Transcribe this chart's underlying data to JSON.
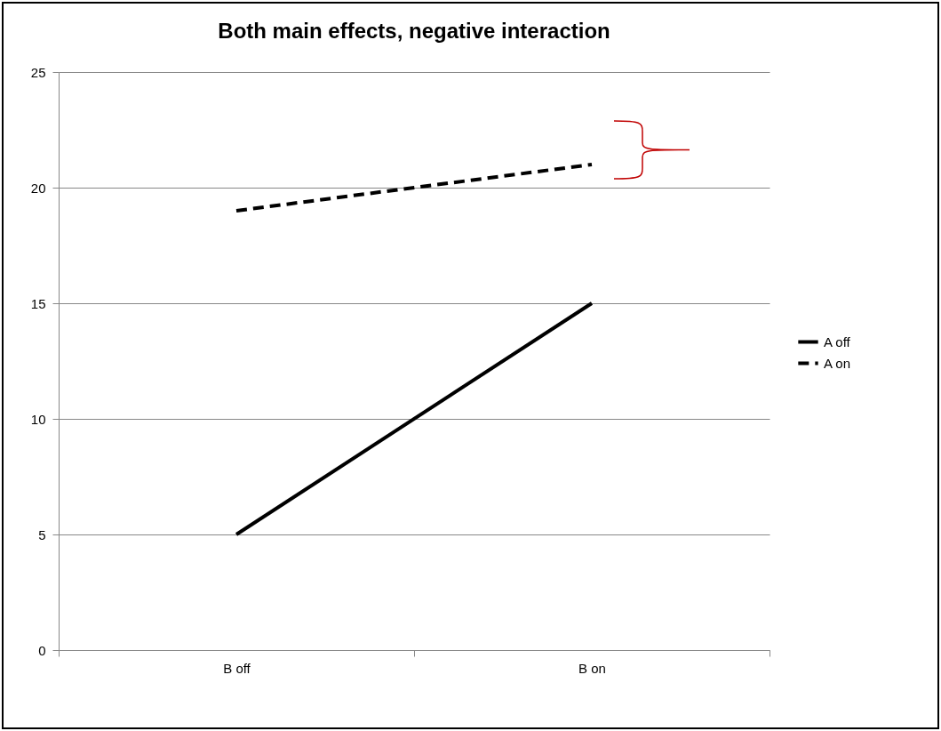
{
  "chart_data": {
    "type": "line",
    "title": "Both main effects, negative interaction",
    "categories": [
      "B off",
      "B on"
    ],
    "series": [
      {
        "name": "A off",
        "color": "#000000",
        "line_style": "solid",
        "values": [
          5,
          15
        ]
      },
      {
        "name": "A on",
        "color": "#000000",
        "line_style": "dashed",
        "values": [
          19,
          21
        ]
      }
    ],
    "ylim": [
      0,
      25
    ],
    "yticks": [
      0,
      5,
      10,
      15,
      20,
      25
    ],
    "grid": "y",
    "legend": "right",
    "marker": "none"
  }
}
